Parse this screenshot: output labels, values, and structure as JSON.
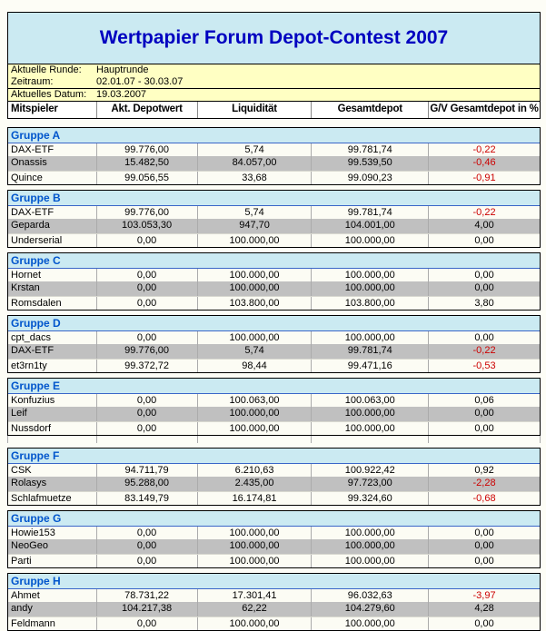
{
  "page": {
    "title": "Wertpapier Forum Depot-Contest 2007"
  },
  "info": {
    "rows": [
      {
        "label": "Aktuelle Runde:",
        "value": "Hauptrunde"
      },
      {
        "label": "Zeitraum:",
        "value": "02.01.07 - 30.03.07"
      },
      {
        "label": "Aktuelles Datum:",
        "value": "19.03.2007"
      }
    ]
  },
  "table": {
    "columns": [
      "Mitspieler",
      "Akt. Depotwert",
      "Liquidität",
      "Gesamtdepot",
      "G/V Gesamtdepot in %"
    ],
    "groups": [
      {
        "name": "Gruppe A",
        "rows": [
          {
            "player": "DAX-ETF",
            "values": [
              "99.776,00",
              "5,74",
              "99.781,74",
              "-0,22"
            ]
          },
          {
            "player": "Onassis",
            "values": [
              "15.482,50",
              "84.057,00",
              "99.539,50",
              "-0,46"
            ]
          },
          {
            "player": "Quince",
            "values": [
              "99.056,55",
              "33,68",
              "99.090,23",
              "-0,91"
            ]
          }
        ]
      },
      {
        "name": "Gruppe B",
        "rows": [
          {
            "player": "DAX-ETF",
            "values": [
              "99.776,00",
              "5,74",
              "99.781,74",
              "-0,22"
            ]
          },
          {
            "player": "Geparda",
            "values": [
              "103.053,30",
              "947,70",
              "104.001,00",
              "4,00"
            ]
          },
          {
            "player": "Underserial",
            "values": [
              "0,00",
              "100.000,00",
              "100.000,00",
              "0,00"
            ]
          }
        ]
      },
      {
        "name": "Gruppe C",
        "rows": [
          {
            "player": "Hornet",
            "values": [
              "0,00",
              "100.000,00",
              "100.000,00",
              "0,00"
            ]
          },
          {
            "player": "Krstan",
            "values": [
              "0,00",
              "100.000,00",
              "100.000,00",
              "0,00"
            ]
          },
          {
            "player": "Romsdalen",
            "values": [
              "0,00",
              "103.800,00",
              "103.800,00",
              "3,80"
            ]
          }
        ]
      },
      {
        "name": "Gruppe D",
        "rows": [
          {
            "player": "cpt_dacs",
            "values": [
              "0,00",
              "100.000,00",
              "100.000,00",
              "0,00"
            ]
          },
          {
            "player": "DAX-ETF",
            "values": [
              "99.776,00",
              "5,74",
              "99.781,74",
              "-0,22"
            ]
          },
          {
            "player": "et3rn1ty",
            "values": [
              "99.372,72",
              "98,44",
              "99.471,16",
              "-0,53"
            ]
          }
        ]
      },
      {
        "name": "Gruppe E",
        "trailing_empty_row": true,
        "rows": [
          {
            "player": "Konfuzius",
            "values": [
              "0,00",
              "100.063,00",
              "100.063,00",
              "0,06"
            ]
          },
          {
            "player": "Leif",
            "values": [
              "0,00",
              "100.000,00",
              "100.000,00",
              "0,00"
            ]
          },
          {
            "player": "Nussdorf",
            "values": [
              "0,00",
              "100.000,00",
              "100.000,00",
              "0,00"
            ]
          }
        ]
      },
      {
        "name": "Gruppe F",
        "rows": [
          {
            "player": "CSK",
            "values": [
              "94.711,79",
              "6.210,63",
              "100.922,42",
              "0,92"
            ]
          },
          {
            "player": "Rolasys",
            "values": [
              "95.288,00",
              "2.435,00",
              "97.723,00",
              "-2,28"
            ]
          },
          {
            "player": "Schlafmuetze",
            "values": [
              "83.149,79",
              "16.174,81",
              "99.324,60",
              "-0,68"
            ]
          }
        ]
      },
      {
        "name": "Gruppe G",
        "rows": [
          {
            "player": "Howie153",
            "values": [
              "0,00",
              "100.000,00",
              "100.000,00",
              "0,00"
            ]
          },
          {
            "player": "NeoGeo",
            "values": [
              "0,00",
              "100.000,00",
              "100.000,00",
              "0,00"
            ]
          },
          {
            "player": "Parti",
            "values": [
              "0,00",
              "100.000,00",
              "100.000,00",
              "0,00"
            ]
          }
        ]
      },
      {
        "name": "Gruppe H",
        "rows": [
          {
            "player": "Ahmet",
            "values": [
              "78.731,22",
              "17.301,41",
              "96.032,63",
              "-3,97"
            ]
          },
          {
            "player": "andy",
            "values": [
              "104.217,38",
              "62,22",
              "104.279,60",
              "4,28"
            ]
          },
          {
            "player": "Feldmann",
            "values": [
              "0,00",
              "100.000,00",
              "100.000,00",
              "0,00"
            ]
          }
        ]
      }
    ]
  },
  "colors": {
    "title_text": "#0000C0",
    "group_text": "#0055CC",
    "negative": "#CC0000",
    "panel_cyan": "#CBEAF2",
    "info_yellow": "#FFFFC3",
    "row_bg": "#FCFCF4",
    "row_alt": "#C0C0C0"
  }
}
